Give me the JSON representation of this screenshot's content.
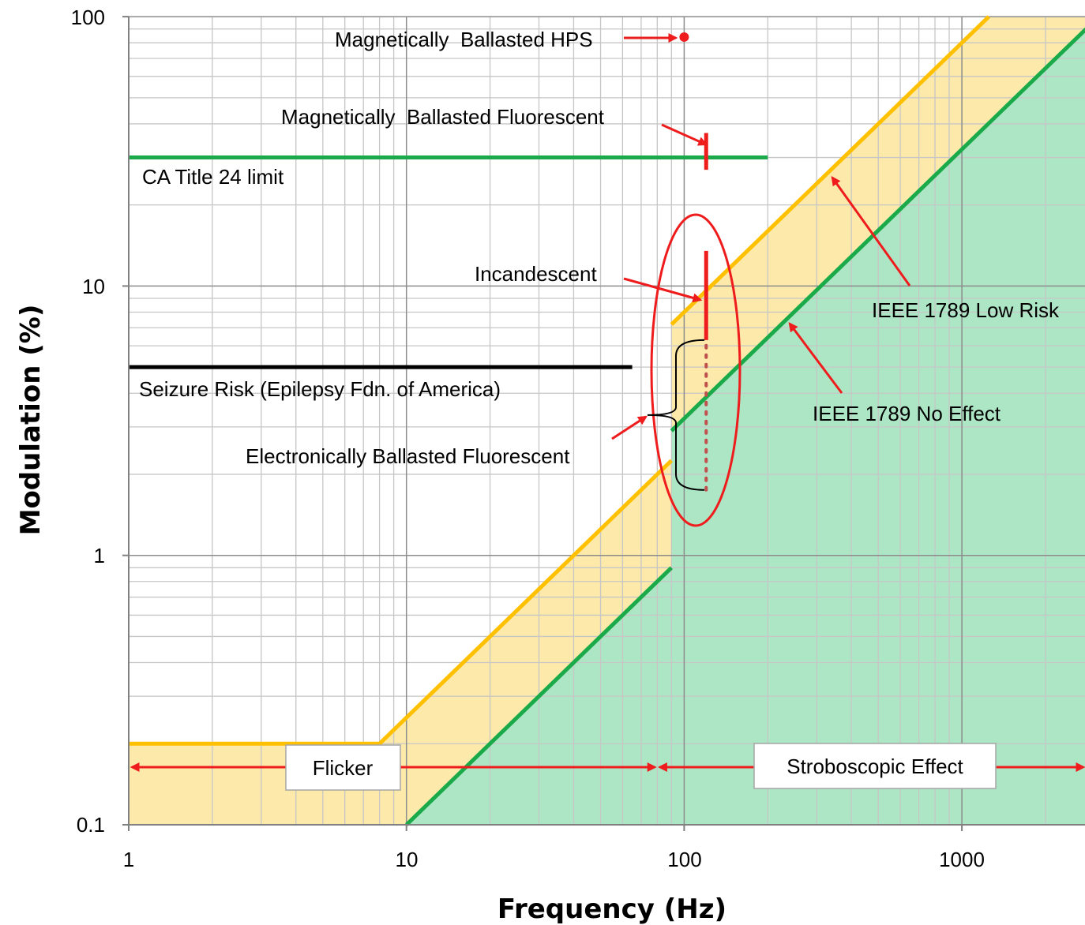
{
  "chart_data": {
    "type": "line",
    "xlabel": "Frequency (Hz)",
    "ylabel": "Modulation (%)",
    "xscale": "log",
    "yscale": "log",
    "xlim": [
      1,
      2800
    ],
    "ylim": [
      0.1,
      100
    ],
    "x_ticks": [
      "1",
      "10",
      "100",
      "1000"
    ],
    "y_ticks": [
      "0.1",
      "1",
      "10",
      "100"
    ],
    "grid": true,
    "colors": {
      "low_risk": "#ffc000",
      "low_risk_fill": "#fde9a9",
      "no_effect": "#1aaa4a",
      "no_effect_fill": "#ade6c5",
      "annotation": "#ee1c1c",
      "seizure": "#000000"
    },
    "series": [
      {
        "name": "IEEE 1789 Low Risk",
        "points": [
          [
            1,
            0.2
          ],
          [
            8,
            0.2
          ],
          [
            90,
            2.25
          ],
          [
            90,
            7.2
          ],
          [
            1250,
            100
          ]
        ]
      },
      {
        "name": "IEEE 1789 No Effect",
        "points": [
          [
            10,
            0.1
          ],
          [
            90,
            0.9
          ],
          [
            90,
            2.9
          ],
          [
            2800,
            90
          ]
        ]
      }
    ],
    "reference_lines": [
      {
        "name": "CA Title 24 limit",
        "x": [
          1,
          200
        ],
        "y": 30
      },
      {
        "name": "Seizure Risk (Epilepsy Fdn. of America)",
        "x": [
          1,
          65
        ],
        "y": 5
      }
    ],
    "markers": [
      {
        "label": "Magnetically  Ballasted HPS",
        "type": "point",
        "x": 100,
        "y": 84
      },
      {
        "label": "Magnetically  Ballasted Fluorescent",
        "type": "range",
        "x": 120,
        "y": [
          27,
          37
        ]
      },
      {
        "label": "Incandescent",
        "type": "range",
        "x": 120,
        "y": [
          6.3,
          13.5
        ]
      },
      {
        "label": "Electronically Ballasted Fluorescent",
        "type": "dotted-range",
        "x": 120,
        "y": [
          1.75,
          6.3
        ]
      }
    ],
    "annotations": [
      "Magnetically  Ballasted HPS",
      "Magnetically  Ballasted Fluorescent",
      "CA Title 24 limit",
      "Incandescent",
      "IEEE 1789 Low Risk",
      "IEEE 1789 No Effect",
      "Seizure Risk (Epilepsy Fdn. of America)",
      "Electronically Ballasted Fluorescent"
    ],
    "regions": [
      {
        "label": "Flicker",
        "x": [
          1,
          80
        ]
      },
      {
        "label": "Stroboscopic Effect",
        "x": [
          80,
          2800
        ]
      }
    ]
  }
}
